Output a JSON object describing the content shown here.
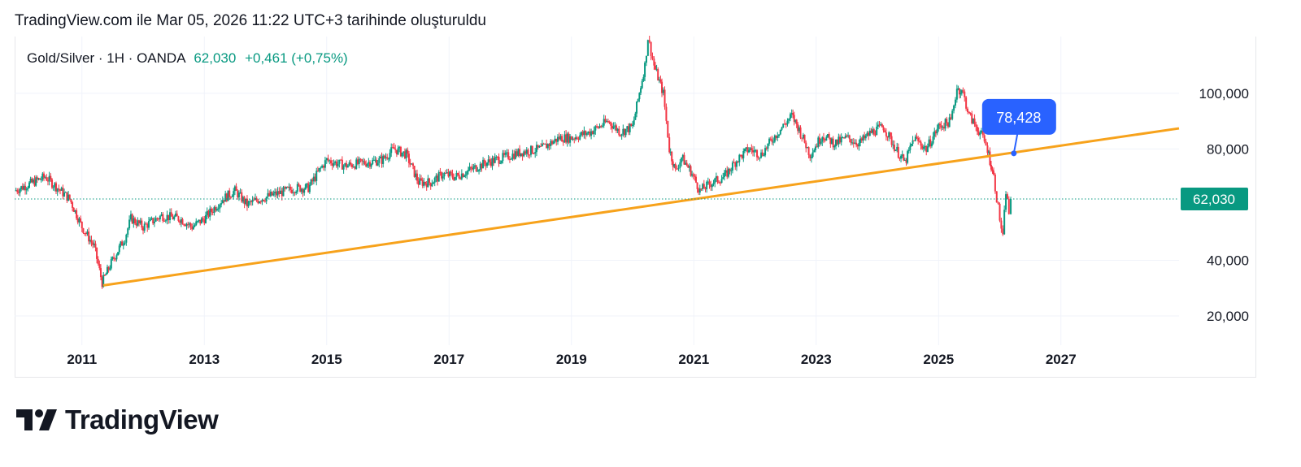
{
  "caption": "TradingView.com ile Mar 05, 2026 11:22 UTC+3 tarihinde oluşturuldu",
  "legend": {
    "symbol": "Gold/Silver · 1H · OANDA",
    "last": "62,030",
    "change": "+0,461 (+0,75%)"
  },
  "logo": {
    "text": "TradingView"
  },
  "colors": {
    "up": "#089981",
    "down": "#f23645",
    "trendline": "#f7a21b",
    "callout": "#2962ff",
    "grid": "#f0f3fa"
  },
  "chart_data": {
    "type": "candlestick",
    "title": "",
    "xlim": [
      2009.9,
      2028.93
    ],
    "ylim": [
      9.5,
      120.4
    ],
    "grid": true,
    "x_ticks": [
      {
        "v": 2011,
        "label": "2011"
      },
      {
        "v": 2013,
        "label": "2013"
      },
      {
        "v": 2015,
        "label": "2015"
      },
      {
        "v": 2017,
        "label": "2017"
      },
      {
        "v": 2019,
        "label": "2019"
      },
      {
        "v": 2021,
        "label": "2021"
      },
      {
        "v": 2023,
        "label": "2023"
      },
      {
        "v": 2025,
        "label": "2025"
      },
      {
        "v": 2027,
        "label": "2027"
      }
    ],
    "y_ticks": [
      {
        "v": 100,
        "label": "100,000"
      },
      {
        "v": 80,
        "label": "80,000"
      },
      {
        "v": 40,
        "label": "40,000"
      },
      {
        "v": 20,
        "label": "20,000"
      }
    ],
    "last_price": {
      "v": 62.03,
      "label": "62,030"
    },
    "series": [
      [
        2009.9,
        65
      ],
      [
        2010.4,
        70
      ],
      [
        2010.8,
        62
      ],
      [
        2011.0,
        52
      ],
      [
        2011.2,
        45
      ],
      [
        2011.33,
        32
      ],
      [
        2011.5,
        40
      ],
      [
        2011.7,
        48
      ],
      [
        2011.8,
        55
      ],
      [
        2012.0,
        52
      ],
      [
        2012.3,
        56
      ],
      [
        2012.6,
        55
      ],
      [
        2012.8,
        52
      ],
      [
        2013.0,
        55
      ],
      [
        2013.3,
        62
      ],
      [
        2013.5,
        65
      ],
      [
        2013.7,
        60
      ],
      [
        2013.9,
        62
      ],
      [
        2014.2,
        64
      ],
      [
        2014.5,
        66
      ],
      [
        2014.7,
        66
      ],
      [
        2014.9,
        73
      ],
      [
        2015.0,
        76
      ],
      [
        2015.3,
        74
      ],
      [
        2015.6,
        75
      ],
      [
        2015.9,
        76
      ],
      [
        2016.1,
        80
      ],
      [
        2016.3,
        78
      ],
      [
        2016.5,
        68
      ],
      [
        2016.7,
        68
      ],
      [
        2016.9,
        71
      ],
      [
        2017.1,
        70
      ],
      [
        2017.4,
        73
      ],
      [
        2017.6,
        75
      ],
      [
        2017.9,
        77
      ],
      [
        2018.2,
        79
      ],
      [
        2018.5,
        80
      ],
      [
        2018.8,
        84
      ],
      [
        2019.0,
        84
      ],
      [
        2019.3,
        86
      ],
      [
        2019.6,
        90
      ],
      [
        2019.8,
        86
      ],
      [
        2020.0,
        88
      ],
      [
        2020.2,
        110
      ],
      [
        2020.25,
        120
      ],
      [
        2020.35,
        110
      ],
      [
        2020.5,
        100
      ],
      [
        2020.6,
        80
      ],
      [
        2020.7,
        72
      ],
      [
        2020.8,
        77
      ],
      [
        2020.95,
        72
      ],
      [
        2021.1,
        65
      ],
      [
        2021.3,
        68
      ],
      [
        2021.5,
        70
      ],
      [
        2021.7,
        76
      ],
      [
        2021.9,
        80
      ],
      [
        2022.1,
        78
      ],
      [
        2022.3,
        84
      ],
      [
        2022.6,
        92
      ],
      [
        2022.7,
        88
      ],
      [
        2022.9,
        78
      ],
      [
        2023.1,
        85
      ],
      [
        2023.3,
        82
      ],
      [
        2023.5,
        84
      ],
      [
        2023.7,
        82
      ],
      [
        2023.9,
        86
      ],
      [
        2024.1,
        88
      ],
      [
        2024.3,
        80
      ],
      [
        2024.45,
        75
      ],
      [
        2024.6,
        84
      ],
      [
        2024.8,
        80
      ],
      [
        2025.0,
        88
      ],
      [
        2025.2,
        90
      ],
      [
        2025.3,
        102
      ],
      [
        2025.4,
        100
      ],
      [
        2025.5,
        92
      ],
      [
        2025.7,
        85
      ],
      [
        2025.8,
        80
      ],
      [
        2025.9,
        70
      ],
      [
        2026.0,
        55
      ],
      [
        2026.05,
        48
      ],
      [
        2026.1,
        65
      ],
      [
        2026.15,
        57
      ],
      [
        2026.18,
        62.03
      ]
    ],
    "trendline": {
      "from": [
        2011.35,
        31
      ],
      "to": [
        2028.93,
        87.4
      ]
    },
    "annotation": {
      "x": 2026.23,
      "y": 78.428,
      "label": "78,428"
    }
  }
}
